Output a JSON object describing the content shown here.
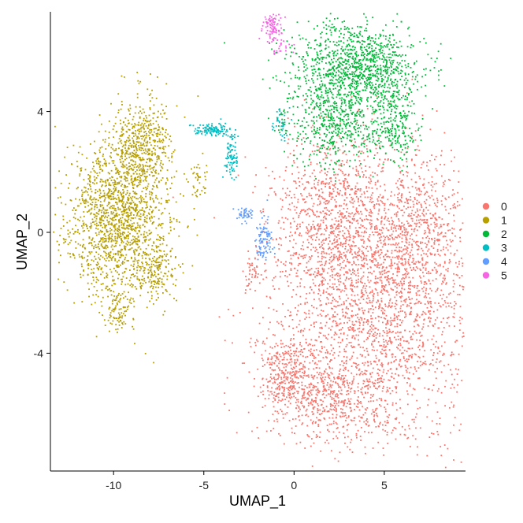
{
  "chart_data": {
    "type": "scatter",
    "title": "",
    "xlabel": "UMAP_1",
    "ylabel": "UMAP_2",
    "xlim": [
      -13.5,
      9.5
    ],
    "ylim": [
      -7.9,
      7.3
    ],
    "xticks": [
      -10,
      -5,
      0,
      5
    ],
    "xtick_labels": [
      "-10",
      "-5",
      "0",
      "5"
    ],
    "yticks": [
      -4,
      0,
      4
    ],
    "ytick_labels": [
      "-4",
      "0",
      "4"
    ],
    "grid": false,
    "legend_position": "right",
    "series": [
      {
        "name": "0",
        "color": "#F8766D",
        "clusters": [
          {
            "cx": 4.5,
            "cy": -2.2,
            "sx": 3.3,
            "sy": 2.7,
            "n": 2400
          },
          {
            "cx": 2.0,
            "cy": 0.6,
            "sx": 1.8,
            "sy": 1.6,
            "n": 700
          },
          {
            "cx": 6.8,
            "cy": 0.2,
            "sx": 1.5,
            "sy": 1.5,
            "n": 500
          },
          {
            "cx": 2.0,
            "cy": -5.4,
            "sx": 2.2,
            "sy": 0.9,
            "n": 600
          },
          {
            "cx": -0.5,
            "cy": -4.6,
            "sx": 0.8,
            "sy": 0.7,
            "n": 250
          },
          {
            "cx": -2.3,
            "cy": -1.3,
            "sx": 0.3,
            "sy": 0.35,
            "n": 40
          }
        ]
      },
      {
        "name": "1",
        "color": "#B79F00",
        "clusters": [
          {
            "cx": -9.8,
            "cy": 0.4,
            "sx": 1.7,
            "sy": 1.5,
            "n": 1500
          },
          {
            "cx": -8.6,
            "cy": 2.9,
            "sx": 1.0,
            "sy": 0.9,
            "n": 500
          },
          {
            "cx": -7.6,
            "cy": -1.3,
            "sx": 0.6,
            "sy": 0.5,
            "n": 150
          },
          {
            "cx": -9.7,
            "cy": -2.7,
            "sx": 0.4,
            "sy": 0.4,
            "n": 80
          },
          {
            "cx": -5.3,
            "cy": 1.7,
            "sx": 0.35,
            "sy": 0.35,
            "n": 40
          }
        ]
      },
      {
        "name": "2",
        "color": "#00BA38",
        "clusters": [
          {
            "cx": 3.4,
            "cy": 5.5,
            "sx": 2.0,
            "sy": 0.8,
            "n": 1100
          },
          {
            "cx": 2.3,
            "cy": 3.6,
            "sx": 1.4,
            "sy": 0.8,
            "n": 500
          },
          {
            "cx": 5.6,
            "cy": 3.6,
            "sx": 0.8,
            "sy": 0.8,
            "n": 250
          },
          {
            "cx": -0.7,
            "cy": 3.6,
            "sx": 0.2,
            "sy": 0.25,
            "n": 20
          }
        ]
      },
      {
        "name": "3",
        "color": "#00BFC4",
        "clusters": [
          {
            "cx": -4.5,
            "cy": 3.4,
            "sx": 0.6,
            "sy": 0.12,
            "n": 120
          },
          {
            "cx": -3.5,
            "cy": 2.6,
            "sx": 0.2,
            "sy": 0.5,
            "n": 90
          },
          {
            "cx": -0.7,
            "cy": 3.6,
            "sx": 0.25,
            "sy": 0.3,
            "n": 35
          }
        ]
      },
      {
        "name": "4",
        "color": "#619CFF",
        "clusters": [
          {
            "cx": -1.7,
            "cy": -0.2,
            "sx": 0.3,
            "sy": 0.45,
            "n": 100
          },
          {
            "cx": -2.8,
            "cy": 0.6,
            "sx": 0.3,
            "sy": 0.15,
            "n": 45
          }
        ]
      },
      {
        "name": "5",
        "color": "#F564E3",
        "clusters": [
          {
            "cx": -1.2,
            "cy": 6.9,
            "sx": 0.35,
            "sy": 0.25,
            "n": 90
          },
          {
            "cx": -0.9,
            "cy": 6.2,
            "sx": 0.4,
            "sy": 0.3,
            "n": 35
          }
        ]
      }
    ]
  }
}
